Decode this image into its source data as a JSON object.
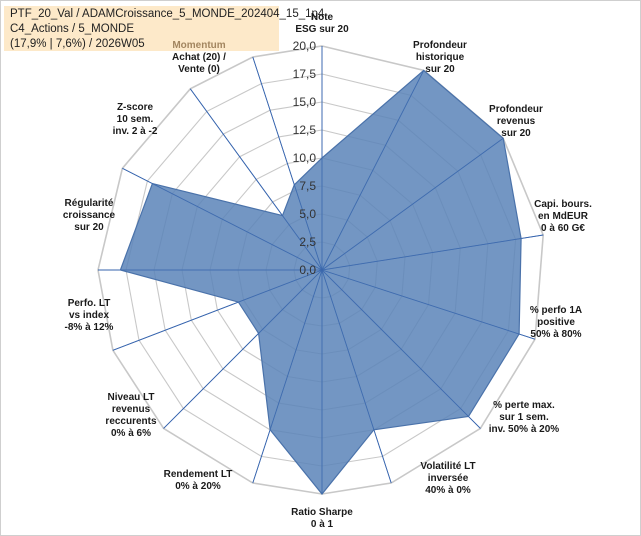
{
  "header": {
    "line1": "PTF_20_Val / ADAMCroissance_5_MONDE_202404_15_1p4",
    "line2": "C4_Actions / 5_MONDE",
    "line3": "(17,9% | 7,6%) / 2026W05"
  },
  "chart_data": {
    "type": "radar",
    "rlim": [
      0,
      20
    ],
    "ticks": [
      "0,0",
      "2,5",
      "5,0",
      "7,5",
      "10,0",
      "12,5",
      "15,0",
      "17,5",
      "20,0"
    ],
    "axes": [
      {
        "label": [
          "Note",
          "ESG sur 20"
        ],
        "value": 10.0
      },
      {
        "label": [
          "Profondeur",
          "historique",
          "sur 20"
        ],
        "value": 20.0
      },
      {
        "label": [
          "Profondeur",
          "revenus",
          "sur 20"
        ],
        "value": 20.0
      },
      {
        "label": [
          "Capi. bours.",
          "en MdEUR",
          "0 à 60 G€"
        ],
        "value": 18.0
      },
      {
        "label": [
          "% perfo 1A",
          "positive",
          "50% à 80%"
        ],
        "value": 18.5
      },
      {
        "label": [
          "% perte max.",
          "sur 1 sem.",
          "inv. 50% à 20%"
        ],
        "value": 18.5
      },
      {
        "label": [
          "Volatilité LT",
          "inversée",
          "40% à 0%"
        ],
        "value": 15.0
      },
      {
        "label": [
          "Ratio Sharpe",
          "0 à 1"
        ],
        "value": 20.0
      },
      {
        "label": [
          "Rendement LT",
          "0% à 20%"
        ],
        "value": 15.0
      },
      {
        "label": [
          "Niveau LT",
          "revenus",
          "reccurents",
          "0% à 6%"
        ],
        "value": 8.0
      },
      {
        "label": [
          "Perfo. LT",
          "vs index",
          "-8% à 12%"
        ],
        "value": 8.0
      },
      {
        "label": [
          "Perfo. LT",
          "vs index",
          "-8% à 12%"
        ],
        "value": 18.0,
        "hidden_label": true
      },
      {
        "label": [
          "Régularité",
          "croissance",
          "sur 20"
        ],
        "value": 17.0
      },
      {
        "label": [
          "Z-score",
          "10 sem.",
          "inv. 2 à -2"
        ],
        "value": 6.0
      },
      {
        "label": [
          "Momentum",
          "Achat (20) /",
          "Vente (0)"
        ],
        "value": 8.0,
        "muted_first_line": true
      }
    ],
    "colors": {
      "fill": "#5b84b8",
      "stroke": "#4a72aa",
      "axis": "#2f5fb0",
      "grid": "#c8c8c8"
    }
  }
}
